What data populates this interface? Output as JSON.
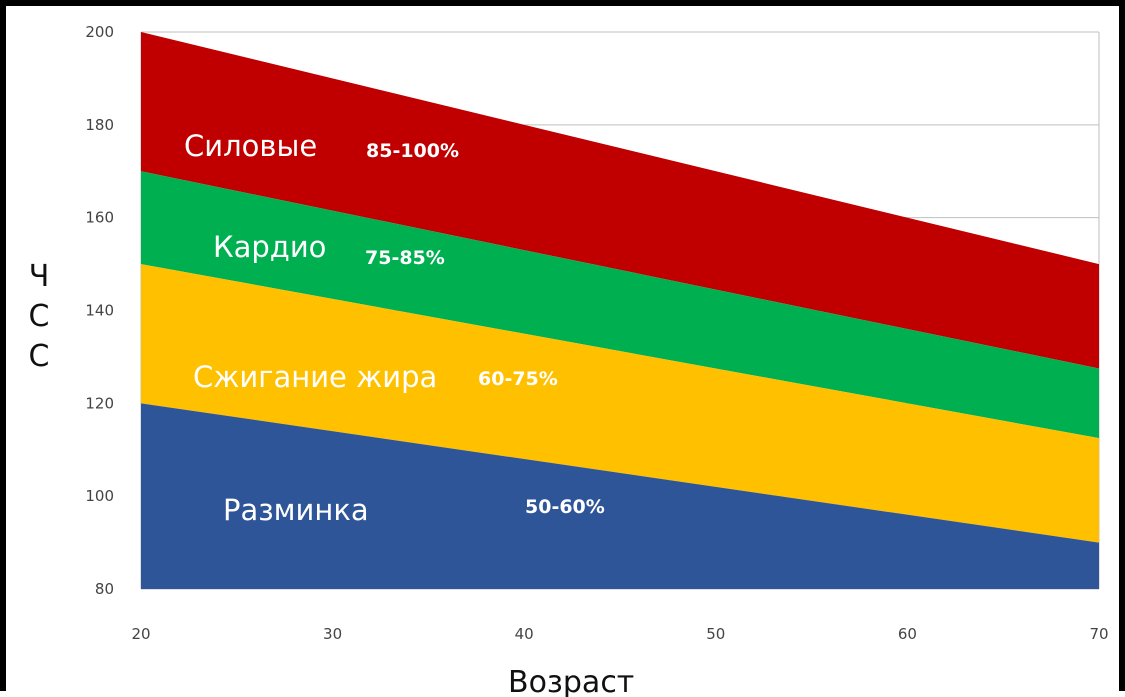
{
  "chart_data": {
    "type": "area",
    "title": "",
    "xlabel": "Возраст",
    "ylabel": "ЧСС",
    "xlim": [
      20,
      70
    ],
    "ylim": [
      80,
      200
    ],
    "xticks": [
      20,
      30,
      40,
      50,
      60,
      70
    ],
    "yticks": [
      80,
      100,
      120,
      140,
      160,
      180,
      200
    ],
    "grid": "horizontal",
    "x": [
      20,
      70
    ],
    "boundaries": [
      {
        "values": [
          200,
          150
        ]
      },
      {
        "values": [
          170,
          127.5
        ]
      },
      {
        "values": [
          150,
          112.5
        ]
      },
      {
        "values": [
          120,
          90
        ]
      }
    ],
    "series": [
      {
        "name": "Силовые",
        "range_label": "85-100%",
        "color": "#c00000",
        "lower": [
          170,
          127.5
        ],
        "upper": [
          200,
          150
        ]
      },
      {
        "name": "Кардио",
        "range_label": "75-85%",
        "color": "#00b050",
        "lower": [
          150,
          112.5
        ],
        "upper": [
          170,
          127.5
        ]
      },
      {
        "name": "Сжигание жира",
        "range_label": "60-75%",
        "color": "#ffc000",
        "lower": [
          120,
          90
        ],
        "upper": [
          150,
          112.5
        ]
      },
      {
        "name": "Разминка",
        "range_label": "50-60%",
        "color": "#2e5597",
        "lower": [
          80,
          80
        ],
        "upper": [
          120,
          90
        ]
      }
    ]
  }
}
